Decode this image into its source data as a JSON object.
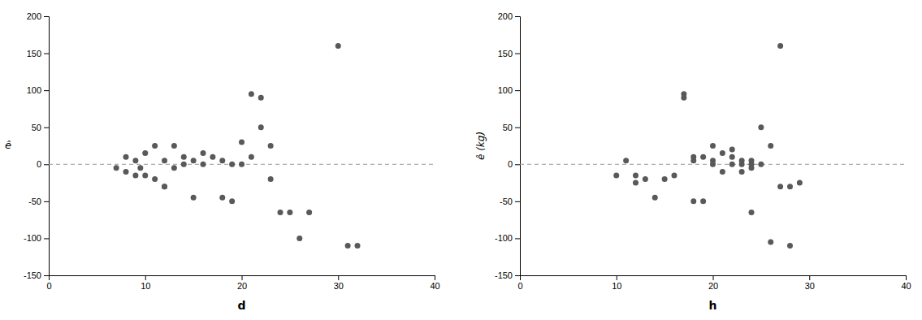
{
  "chart_data": [
    {
      "type": "scatter",
      "xlabel": "d",
      "ylabel": "ê",
      "x": [
        7,
        8,
        8,
        9,
        9,
        9.5,
        10,
        10,
        11,
        11,
        12,
        12,
        12,
        13,
        13,
        14,
        14,
        15,
        15,
        16,
        16,
        17,
        18,
        18,
        19,
        19,
        20,
        20,
        21,
        21,
        22,
        22,
        23,
        23,
        24,
        25,
        26,
        27,
        30,
        31,
        32
      ],
      "values": [
        -5,
        -10,
        10,
        -15,
        5,
        -5,
        -15,
        15,
        -20,
        25,
        -30,
        5,
        -30,
        -5,
        25,
        0,
        10,
        -45,
        5,
        0,
        15,
        10,
        -45,
        5,
        -50,
        0,
        30,
        0,
        95,
        10,
        90,
        50,
        25,
        -20,
        -65,
        -65,
        -100,
        -65,
        160,
        -110,
        -110
      ],
      "color": "#595959",
      "hline": 0,
      "xlim": [
        0,
        40
      ],
      "xticks": [
        0,
        10,
        20,
        30,
        40
      ],
      "ylim": [
        -150,
        200
      ],
      "yticks": [
        -150,
        -100,
        -50,
        0,
        50,
        100,
        150,
        200
      ],
      "grid": false
    },
    {
      "type": "scatter",
      "xlabel": "h",
      "ylabel": "ê (kg)",
      "x": [
        10,
        11,
        12,
        12,
        13,
        14,
        15,
        16,
        17,
        17,
        18,
        18,
        18,
        19,
        19,
        20,
        20,
        20,
        21,
        21,
        22,
        22,
        22,
        23,
        23,
        23,
        24,
        24,
        24,
        24,
        25,
        25,
        26,
        26,
        27,
        27,
        28,
        28,
        29
      ],
      "values": [
        -15,
        5,
        -15,
        -25,
        -20,
        -45,
        -20,
        -15,
        90,
        95,
        -50,
        5,
        10,
        -50,
        10,
        0,
        5,
        25,
        -10,
        15,
        0,
        10,
        20,
        -10,
        0,
        5,
        -65,
        0,
        5,
        -5,
        50,
        0,
        -105,
        25,
        160,
        -30,
        -110,
        -30,
        -25
      ],
      "color": "#595959",
      "hline": 0,
      "xlim": [
        0,
        40
      ],
      "xticks": [
        0,
        10,
        20,
        30,
        40
      ],
      "ylim": [
        -150,
        200
      ],
      "yticks": [
        -150,
        -100,
        -50,
        0,
        50,
        100,
        150,
        200
      ],
      "grid": false
    }
  ]
}
